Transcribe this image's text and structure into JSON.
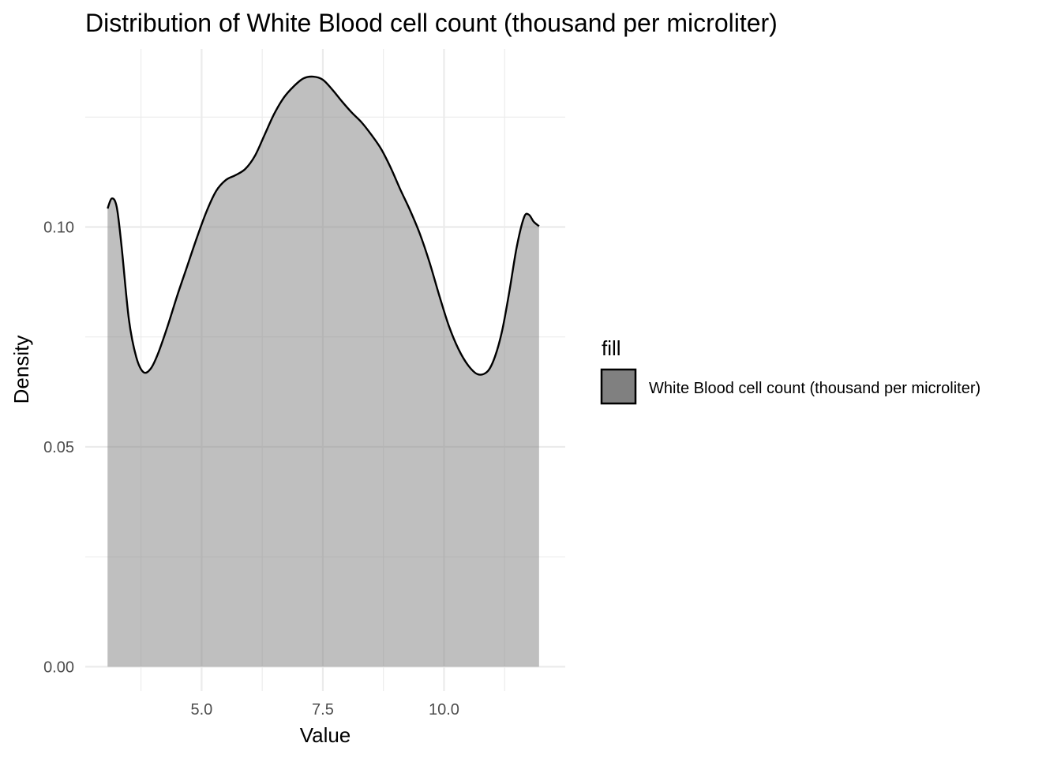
{
  "chart_data": {
    "type": "area",
    "title": "Distribution of White Blood cell count (thousand per microliter)",
    "xlabel": "Value",
    "ylabel": "Density",
    "xlim": [
      2.6,
      12.5
    ],
    "ylim": [
      -0.0055,
      0.1405
    ],
    "x_ticks": [
      5.0,
      7.5,
      10.0
    ],
    "x_tick_labels": [
      "5.0",
      "7.5",
      "10.0"
    ],
    "x_minor_ticks": [
      3.75,
      6.25,
      8.75,
      11.25
    ],
    "y_ticks": [
      0.0,
      0.05,
      0.1
    ],
    "y_tick_labels": [
      "0.00",
      "0.05",
      "0.10"
    ],
    "y_minor_ticks": [
      0.025,
      0.075,
      0.125
    ],
    "grid": true,
    "legend": {
      "title": "fill",
      "position": "right",
      "entries": [
        "White Blood cell count (thousand per microliter)"
      ]
    },
    "series": [
      {
        "name": "White Blood cell count (thousand per microliter)",
        "fill": "#808080",
        "stroke": "#000000",
        "x": [
          3.06,
          3.15,
          3.25,
          3.35,
          3.5,
          3.65,
          3.8,
          3.95,
          4.1,
          4.3,
          4.5,
          4.7,
          4.9,
          5.1,
          5.3,
          5.5,
          5.7,
          5.9,
          6.1,
          6.3,
          6.5,
          6.7,
          6.9,
          7.1,
          7.3,
          7.5,
          7.7,
          7.9,
          8.1,
          8.3,
          8.5,
          8.7,
          8.9,
          9.1,
          9.3,
          9.5,
          9.7,
          9.9,
          10.1,
          10.3,
          10.5,
          10.7,
          10.9,
          11.05,
          11.2,
          11.35,
          11.5,
          11.65,
          11.75,
          11.85,
          11.96
        ],
        "y": [
          0.1042,
          0.1065,
          0.1045,
          0.0955,
          0.079,
          0.0705,
          0.067,
          0.0678,
          0.0712,
          0.0775,
          0.0845,
          0.091,
          0.0975,
          0.1035,
          0.1082,
          0.1107,
          0.1118,
          0.1132,
          0.1162,
          0.121,
          0.1258,
          0.1295,
          0.132,
          0.1338,
          0.1342,
          0.1335,
          0.1312,
          0.1285,
          0.126,
          0.1238,
          0.121,
          0.1178,
          0.1135,
          0.1085,
          0.1038,
          0.0985,
          0.092,
          0.0845,
          0.0775,
          0.0722,
          0.0685,
          0.0665,
          0.0672,
          0.0705,
          0.0765,
          0.0855,
          0.0955,
          0.1022,
          0.1028,
          0.1012,
          0.1002
        ]
      }
    ]
  }
}
